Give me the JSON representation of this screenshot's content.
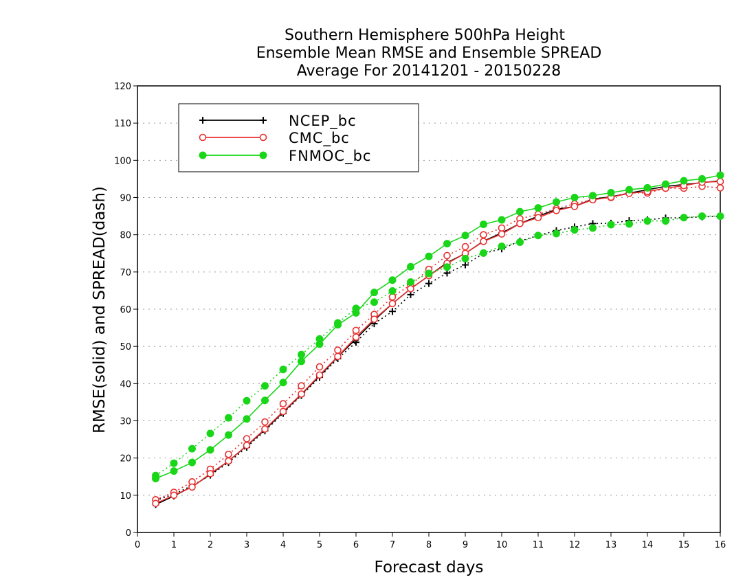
{
  "chart_data": {
    "type": "line",
    "title": [
      "Southern Hemisphere 500hPa Height",
      "Ensemble Mean RMSE and Ensemble SPREAD",
      "Average For 20141201 - 20150228"
    ],
    "xlabel": "Forecast days",
    "ylabel": "RMSE(solid) and SPREAD(dash)",
    "xlim": [
      0,
      16
    ],
    "ylim": [
      0,
      120
    ],
    "xticks": [
      "0",
      "1",
      "2",
      "3",
      "4",
      "5",
      "6",
      "7",
      "8",
      "9",
      "10",
      "11",
      "12",
      "13",
      "14",
      "15",
      "16"
    ],
    "yticks": [
      "0",
      "10",
      "20",
      "30",
      "40",
      "50",
      "60",
      "70",
      "80",
      "90",
      "100",
      "110",
      "120"
    ],
    "grid": "horizontal dotted",
    "legend_position": "top-left",
    "x": [
      0.5,
      1,
      1.5,
      2,
      2.5,
      3,
      3.5,
      4,
      4.5,
      5,
      5.5,
      6,
      6.5,
      7,
      7.5,
      8,
      8.5,
      9,
      9.5,
      10,
      10.5,
      11,
      11.5,
      12,
      12.5,
      13,
      13.5,
      14,
      14.5,
      15,
      15.5,
      16
    ],
    "series": [
      {
        "name": "NCEP_bc",
        "color": "#000000",
        "marker": "plus",
        "rmse": [
          7.5,
          9.8,
          12.3,
          15.6,
          19.2,
          23.3,
          27.6,
          32.3,
          37.1,
          42.0,
          47.2,
          52.0,
          57.0,
          61.5,
          65.5,
          69.0,
          72.5,
          75.0,
          78.3,
          80.5,
          83.0,
          85.0,
          86.8,
          87.6,
          89.6,
          90.2,
          91.2,
          92.1,
          93.0,
          93.5,
          94.0,
          94.5
        ],
        "spread": [
          8.6,
          10.3,
          12.6,
          15.4,
          18.8,
          22.9,
          27.3,
          32.0,
          36.8,
          41.7,
          46.7,
          51.1,
          56.1,
          59.4,
          63.9,
          66.9,
          69.7,
          71.9,
          75.0,
          76.2,
          78.3,
          79.8,
          81.1,
          82.1,
          83.0,
          83.1,
          83.8,
          84.0,
          84.5,
          84.6,
          84.8,
          85.0
        ]
      },
      {
        "name": "CMC_bc",
        "color": "#e83030",
        "marker": "open-circle",
        "rmse": [
          7.8,
          10.0,
          12.2,
          15.8,
          19.2,
          23.4,
          27.8,
          32.5,
          37.2,
          42.3,
          47.3,
          52.5,
          57.3,
          61.5,
          65.5,
          69.0,
          72.3,
          75.0,
          78.2,
          80.2,
          83.0,
          84.6,
          86.5,
          87.6,
          89.4,
          90.1,
          91.1,
          91.6,
          92.5,
          93.2,
          94.1,
          94.3
        ],
        "spread": [
          8.8,
          10.8,
          13.6,
          17.0,
          21.0,
          25.2,
          29.7,
          34.6,
          39.4,
          44.5,
          49.0,
          54.3,
          58.6,
          63.3,
          66.5,
          70.7,
          74.4,
          76.8,
          80.0,
          81.8,
          84.3,
          85.5,
          87.0,
          88.3,
          89.5,
          90.0,
          91.3,
          91.2,
          92.5,
          92.5,
          93.0,
          92.6
        ]
      },
      {
        "name": "FNMOC_bc",
        "color": "#19d619",
        "marker": "filled-circle",
        "rmse": [
          14.5,
          16.5,
          18.8,
          22.2,
          26.2,
          30.5,
          35.5,
          40.3,
          46.0,
          50.6,
          55.8,
          59.0,
          64.5,
          67.8,
          71.4,
          74.2,
          77.6,
          79.8,
          82.8,
          84.0,
          86.2,
          87.2,
          88.8,
          90.0,
          90.5,
          91.3,
          92.1,
          92.6,
          93.6,
          94.5,
          95.0,
          96.0
        ],
        "spread": [
          15.3,
          18.6,
          22.5,
          26.6,
          30.8,
          35.4,
          39.4,
          43.8,
          47.8,
          52.0,
          56.3,
          60.2,
          61.9,
          64.9,
          67.3,
          69.6,
          71.3,
          73.6,
          75.1,
          76.9,
          78.0,
          79.8,
          80.3,
          81.3,
          81.8,
          82.7,
          82.9,
          83.7,
          83.7,
          84.6,
          85.0,
          85.0
        ]
      }
    ]
  }
}
